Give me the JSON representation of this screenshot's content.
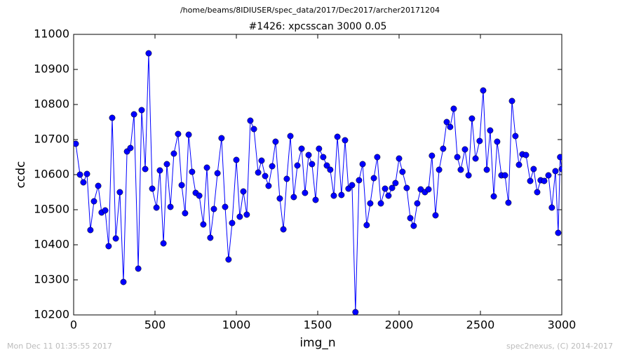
{
  "chart_data": {
    "type": "line",
    "suptitle": "/home/beams/8IDIUSER/spec_data/2017/Dec2017/archer20171204",
    "title": "#1426: xpcsscan 3000 0.05",
    "x_label": "img_n",
    "y_label": "ccdc",
    "footer_left": "Mon Dec 11 01:35:55 2017",
    "footer_right": "spec2nexus, (C) 2014-2017",
    "color": "#0000ff",
    "marker": "circle",
    "xlim": [
      0,
      3000
    ],
    "xticks": [
      0,
      500,
      1000,
      1500,
      2000,
      2500,
      3000
    ],
    "ylim": [
      10200,
      11000
    ],
    "yticks": [
      10200,
      10300,
      10400,
      10500,
      10600,
      10700,
      10800,
      10900,
      11000
    ],
    "grid": false,
    "x": [
      13,
      39,
      60,
      82,
      103,
      125,
      151,
      172,
      194,
      215,
      237,
      259,
      284,
      306,
      328,
      349,
      371,
      397,
      418,
      440,
      461,
      483,
      509,
      530,
      552,
      573,
      595,
      616,
      642,
      664,
      685,
      707,
      728,
      750,
      772,
      797,
      819,
      840,
      862,
      884,
      909,
      931,
      952,
      974,
      1000,
      1021,
      1043,
      1064,
      1086,
      1108,
      1134,
      1155,
      1177,
      1198,
      1220,
      1241,
      1267,
      1289,
      1310,
      1332,
      1353,
      1375,
      1401,
      1422,
      1444,
      1465,
      1487,
      1508,
      1534,
      1556,
      1577,
      1599,
      1621,
      1646,
      1668,
      1689,
      1711,
      1732,
      1754,
      1776,
      1801,
      1823,
      1845,
      1866,
      1888,
      1914,
      1935,
      1957,
      1978,
      2000,
      2021,
      2047,
      2069,
      2090,
      2112,
      2133,
      2159,
      2181,
      2202,
      2224,
      2246,
      2271,
      2293,
      2314,
      2336,
      2358,
      2379,
      2405,
      2427,
      2448,
      2470,
      2495,
      2517,
      2539,
      2560,
      2582,
      2603,
      2629,
      2651,
      2672,
      2694,
      2715,
      2737,
      2758,
      2780,
      2806,
      2827,
      2849,
      2870,
      2892,
      2918,
      2939,
      2961,
      2978,
      2990,
      3000
    ],
    "values": [
      10688,
      10600,
      10578,
      10602,
      10442,
      10524,
      10568,
      10492,
      10498,
      10396,
      10762,
      10418,
      10550,
      10294,
      10666,
      10676,
      10772,
      10332,
      10784,
      10616,
      10946,
      10560,
      10506,
      10612,
      10404,
      10630,
      10508,
      10660,
      10716,
      10570,
      10490,
      10714,
      10608,
      10548,
      10540,
      10458,
      10620,
      10420,
      10502,
      10604,
      10704,
      10508,
      10358,
      10462,
      10642,
      10480,
      10552,
      10486,
      10754,
      10730,
      10606,
      10640,
      10596,
      10568,
      10624,
      10694,
      10532,
      10444,
      10588,
      10710,
      10536,
      10626,
      10674,
      10548,
      10656,
      10630,
      10528,
      10674,
      10650,
      10626,
      10614,
      10540,
      10708,
      10542,
      10698,
      10560,
      10570,
      10208,
      10584,
      10630,
      10456,
      10518,
      10590,
      10650,
      10518,
      10560,
      10540,
      10562,
      10576,
      10646,
      10608,
      10562,
      10476,
      10454,
      10518,
      10558,
      10550,
      10558,
      10654,
      10484,
      10614,
      10674,
      10750,
      10736,
      10788,
      10650,
      10614,
      10672,
      10598,
      10760,
      10646,
      10696,
      10840,
      10614,
      10726,
      10538,
      10694,
      10598,
      10598,
      10520,
      10810,
      10710,
      10628,
      10658,
      10656,
      10582,
      10616,
      10550,
      10584,
      10582,
      10598,
      10506,
      10610,
      10434,
      10650,
      10616
    ]
  }
}
